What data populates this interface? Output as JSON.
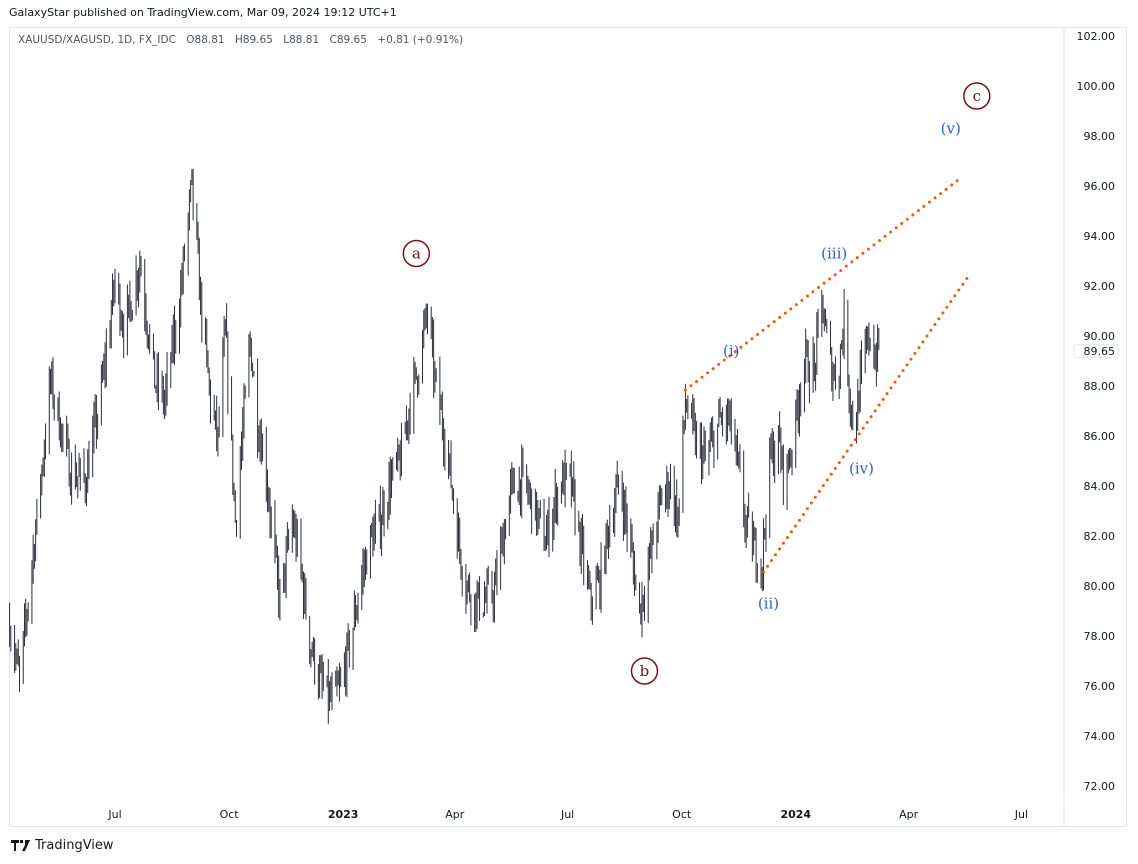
{
  "header": {
    "published": "GalaxyStar published on TradingView.com, Mar 09, 2024 19:12 UTC+1",
    "symbol": "XAUUSD/XAGUSD, 1D, FX_IDC",
    "open": "O88.81",
    "high": "H89.65",
    "low": "L88.81",
    "close": "C89.65",
    "change": "+0.81 (+0.91%)"
  },
  "brand": {
    "name": "TradingView",
    "icon": "tradingview-logo-icon"
  },
  "colors": {
    "bars": "#2a2e39",
    "wave_major": "#7b1113",
    "wave_minor": "#2d5bd6",
    "trendline": "#f05a0a",
    "axis_text": "#131722"
  },
  "chart_data": {
    "type": "ohlc-bar",
    "title": "",
    "ylim": [
      71,
      103
    ],
    "xlim": [
      "2022-04-06",
      "2024-08-10"
    ],
    "grid": false,
    "price_ticks": [
      "102.00",
      "100.00",
      "98.00",
      "96.00",
      "94.00",
      "92.00",
      "90.00",
      "88.00",
      "86.00",
      "84.00",
      "82.00",
      "80.00",
      "78.00",
      "76.00",
      "74.00",
      "72.00"
    ],
    "last_price": "89.65",
    "time_ticks": [
      {
        "date": "2022-07-01",
        "label": "Jul",
        "bold": false
      },
      {
        "date": "2022-10-01",
        "label": "Oct",
        "bold": false
      },
      {
        "date": "2023-01-01",
        "label": "2023",
        "bold": true
      },
      {
        "date": "2023-04-01",
        "label": "Apr",
        "bold": false
      },
      {
        "date": "2023-07-01",
        "label": "Jul",
        "bold": false
      },
      {
        "date": "2023-10-01",
        "label": "Oct",
        "bold": false
      },
      {
        "date": "2024-01-01",
        "label": "2024",
        "bold": true
      },
      {
        "date": "2024-04-01",
        "label": "Apr",
        "bold": false
      },
      {
        "date": "2024-07-01",
        "label": "Jul",
        "bold": false
      }
    ],
    "approx_closes": [
      [
        "2022-04-07",
        78.6
      ],
      [
        "2022-04-15",
        76.2
      ],
      [
        "2022-05-02",
        84.2
      ],
      [
        "2022-05-10",
        88.2
      ],
      [
        "2022-05-26",
        84.6
      ],
      [
        "2022-06-07",
        84.2
      ],
      [
        "2022-06-19",
        87.4
      ],
      [
        "2022-07-01",
        92.2
      ],
      [
        "2022-07-09",
        90.2
      ],
      [
        "2022-07-21",
        93.0
      ],
      [
        "2022-08-02",
        88.2
      ],
      [
        "2022-08-10",
        87.4
      ],
      [
        "2022-08-22",
        91.4
      ],
      [
        "2022-09-01",
        96.0
      ],
      [
        "2022-09-08",
        91.4
      ],
      [
        "2022-09-16",
        87.4
      ],
      [
        "2022-09-22",
        85.8
      ],
      [
        "2022-09-28",
        90.2
      ],
      [
        "2022-10-06",
        82.6
      ],
      [
        "2022-10-14",
        87.4
      ],
      [
        "2022-10-18",
        89.8
      ],
      [
        "2022-10-24",
        86.6
      ],
      [
        "2022-10-30",
        85.0
      ],
      [
        "2022-11-07",
        81.0
      ],
      [
        "2022-11-11",
        79.4
      ],
      [
        "2022-11-21",
        82.6
      ],
      [
        "2022-11-27",
        81.0
      ],
      [
        "2022-12-05",
        77.8
      ],
      [
        "2022-12-13",
        76.2
      ],
      [
        "2022-12-21",
        75.4
      ],
      [
        "2022-12-29",
        75.8
      ],
      [
        "2023-01-07",
        77.8
      ],
      [
        "2023-01-15",
        80.2
      ],
      [
        "2023-01-23",
        81.8
      ],
      [
        "2023-01-31",
        82.6
      ],
      [
        "2023-02-08",
        84.2
      ],
      [
        "2023-02-16",
        85.0
      ],
      [
        "2023-02-24",
        87.4
      ],
      [
        "2023-03-02",
        88.6
      ],
      [
        "2023-03-10",
        91.0
      ],
      [
        "2023-03-16",
        88.2
      ],
      [
        "2023-03-22",
        86.6
      ],
      [
        "2023-03-28",
        84.6
      ],
      [
        "2023-04-04",
        81.8
      ],
      [
        "2023-04-09",
        80.2
      ],
      [
        "2023-04-17",
        79.4
      ],
      [
        "2023-04-25",
        79.4
      ],
      [
        "2023-05-03",
        79.8
      ],
      [
        "2023-05-16",
        83.8
      ],
      [
        "2023-05-25",
        84.2
      ],
      [
        "2023-06-02",
        83.4
      ],
      [
        "2023-06-13",
        81.8
      ],
      [
        "2023-06-25",
        84.2
      ],
      [
        "2023-07-03",
        84.2
      ],
      [
        "2023-07-11",
        81.8
      ],
      [
        "2023-07-19",
        79.4
      ],
      [
        "2023-07-27",
        80.2
      ],
      [
        "2023-08-04",
        82.6
      ],
      [
        "2023-08-12",
        84.2
      ],
      [
        "2023-08-20",
        81.8
      ],
      [
        "2023-08-28",
        79.0
      ],
      [
        "2023-09-05",
        81.0
      ],
      [
        "2023-09-14",
        83.4
      ],
      [
        "2023-09-22",
        84.2
      ],
      [
        "2023-09-28",
        82.6
      ],
      [
        "2023-10-04",
        87.4
      ],
      [
        "2023-10-12",
        85.8
      ],
      [
        "2023-10-20",
        85.0
      ],
      [
        "2023-11-01",
        86.6
      ],
      [
        "2023-11-09",
        86.6
      ],
      [
        "2023-11-17",
        84.2
      ],
      [
        "2023-11-21",
        82.6
      ],
      [
        "2023-11-29",
        81.4
      ],
      [
        "2023-12-05",
        81.0
      ],
      [
        "2023-12-11",
        85.0
      ],
      [
        "2023-12-18",
        85.8
      ],
      [
        "2023-12-23",
        84.2
      ],
      [
        "2023-12-31",
        86.2
      ],
      [
        "2024-01-07",
        89.0
      ],
      [
        "2024-01-16",
        88.6
      ],
      [
        "2024-01-22",
        91.4
      ],
      [
        "2024-01-28",
        89.0
      ],
      [
        "2024-02-03",
        88.2
      ],
      [
        "2024-02-09",
        90.6
      ],
      [
        "2024-02-14",
        87.4
      ],
      [
        "2024-02-18",
        86.2
      ],
      [
        "2024-02-22",
        88.2
      ],
      [
        "2024-03-01",
        90.2
      ],
      [
        "2024-03-05",
        89.0
      ],
      [
        "2024-03-08",
        89.65
      ]
    ],
    "wave_labels": [
      {
        "text": "a",
        "date": "2023-03-01",
        "price": 93.3,
        "degree": "major"
      },
      {
        "text": "b",
        "date": "2023-09-01",
        "price": 76.6,
        "degree": "major"
      },
      {
        "text": "c",
        "date": "2024-05-26",
        "price": 99.6,
        "degree": "major"
      },
      {
        "text": "(i)",
        "date": "2023-11-10",
        "price": 89.4,
        "degree": "minor"
      },
      {
        "text": "(ii)",
        "date": "2023-12-10",
        "price": 79.3,
        "degree": "minor"
      },
      {
        "text": "(iii)",
        "date": "2024-02-01",
        "price": 93.3,
        "degree": "minor"
      },
      {
        "text": "(iv)",
        "date": "2024-02-23",
        "price": 84.7,
        "degree": "minor"
      },
      {
        "text": "(v)",
        "date": "2024-05-05",
        "price": 98.3,
        "degree": "minor"
      }
    ],
    "trendlines": [
      {
        "name": "upper-wedge-line",
        "from": [
          "2023-10-04",
          87.84
        ],
        "to": [
          "2024-05-11",
          96.24
        ]
      },
      {
        "name": "lower-wedge-line",
        "from": [
          "2023-12-06",
          80.56
        ],
        "to": [
          "2024-05-21",
          92.52
        ]
      }
    ]
  }
}
